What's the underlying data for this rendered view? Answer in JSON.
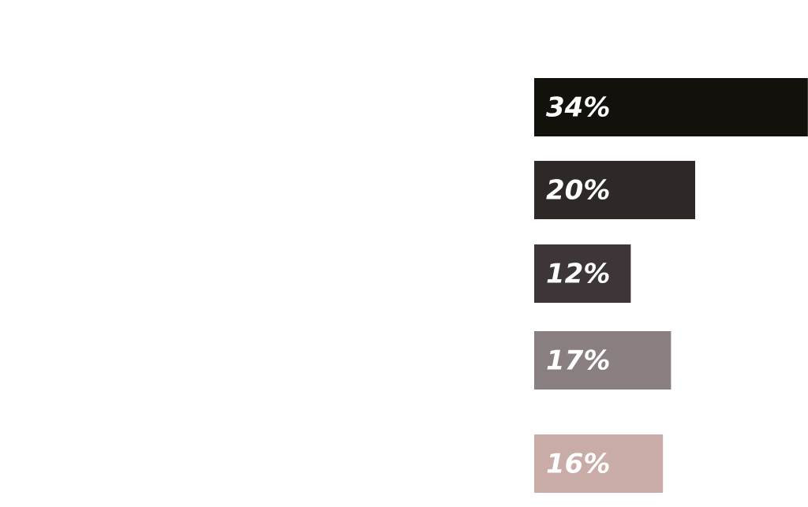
{
  "chart_data": {
    "type": "bar",
    "orientation": "horizontal",
    "categories": [
      null,
      null,
      null,
      null,
      null
    ],
    "values": [
      34,
      20,
      12,
      17,
      16
    ],
    "value_labels": [
      "34%",
      "20%",
      "12%",
      "17%",
      "16%"
    ],
    "colors": [
      "#12110c",
      "#2e2926",
      "#3d3537",
      "#8a7f80",
      "#c9aba7"
    ]
  }
}
